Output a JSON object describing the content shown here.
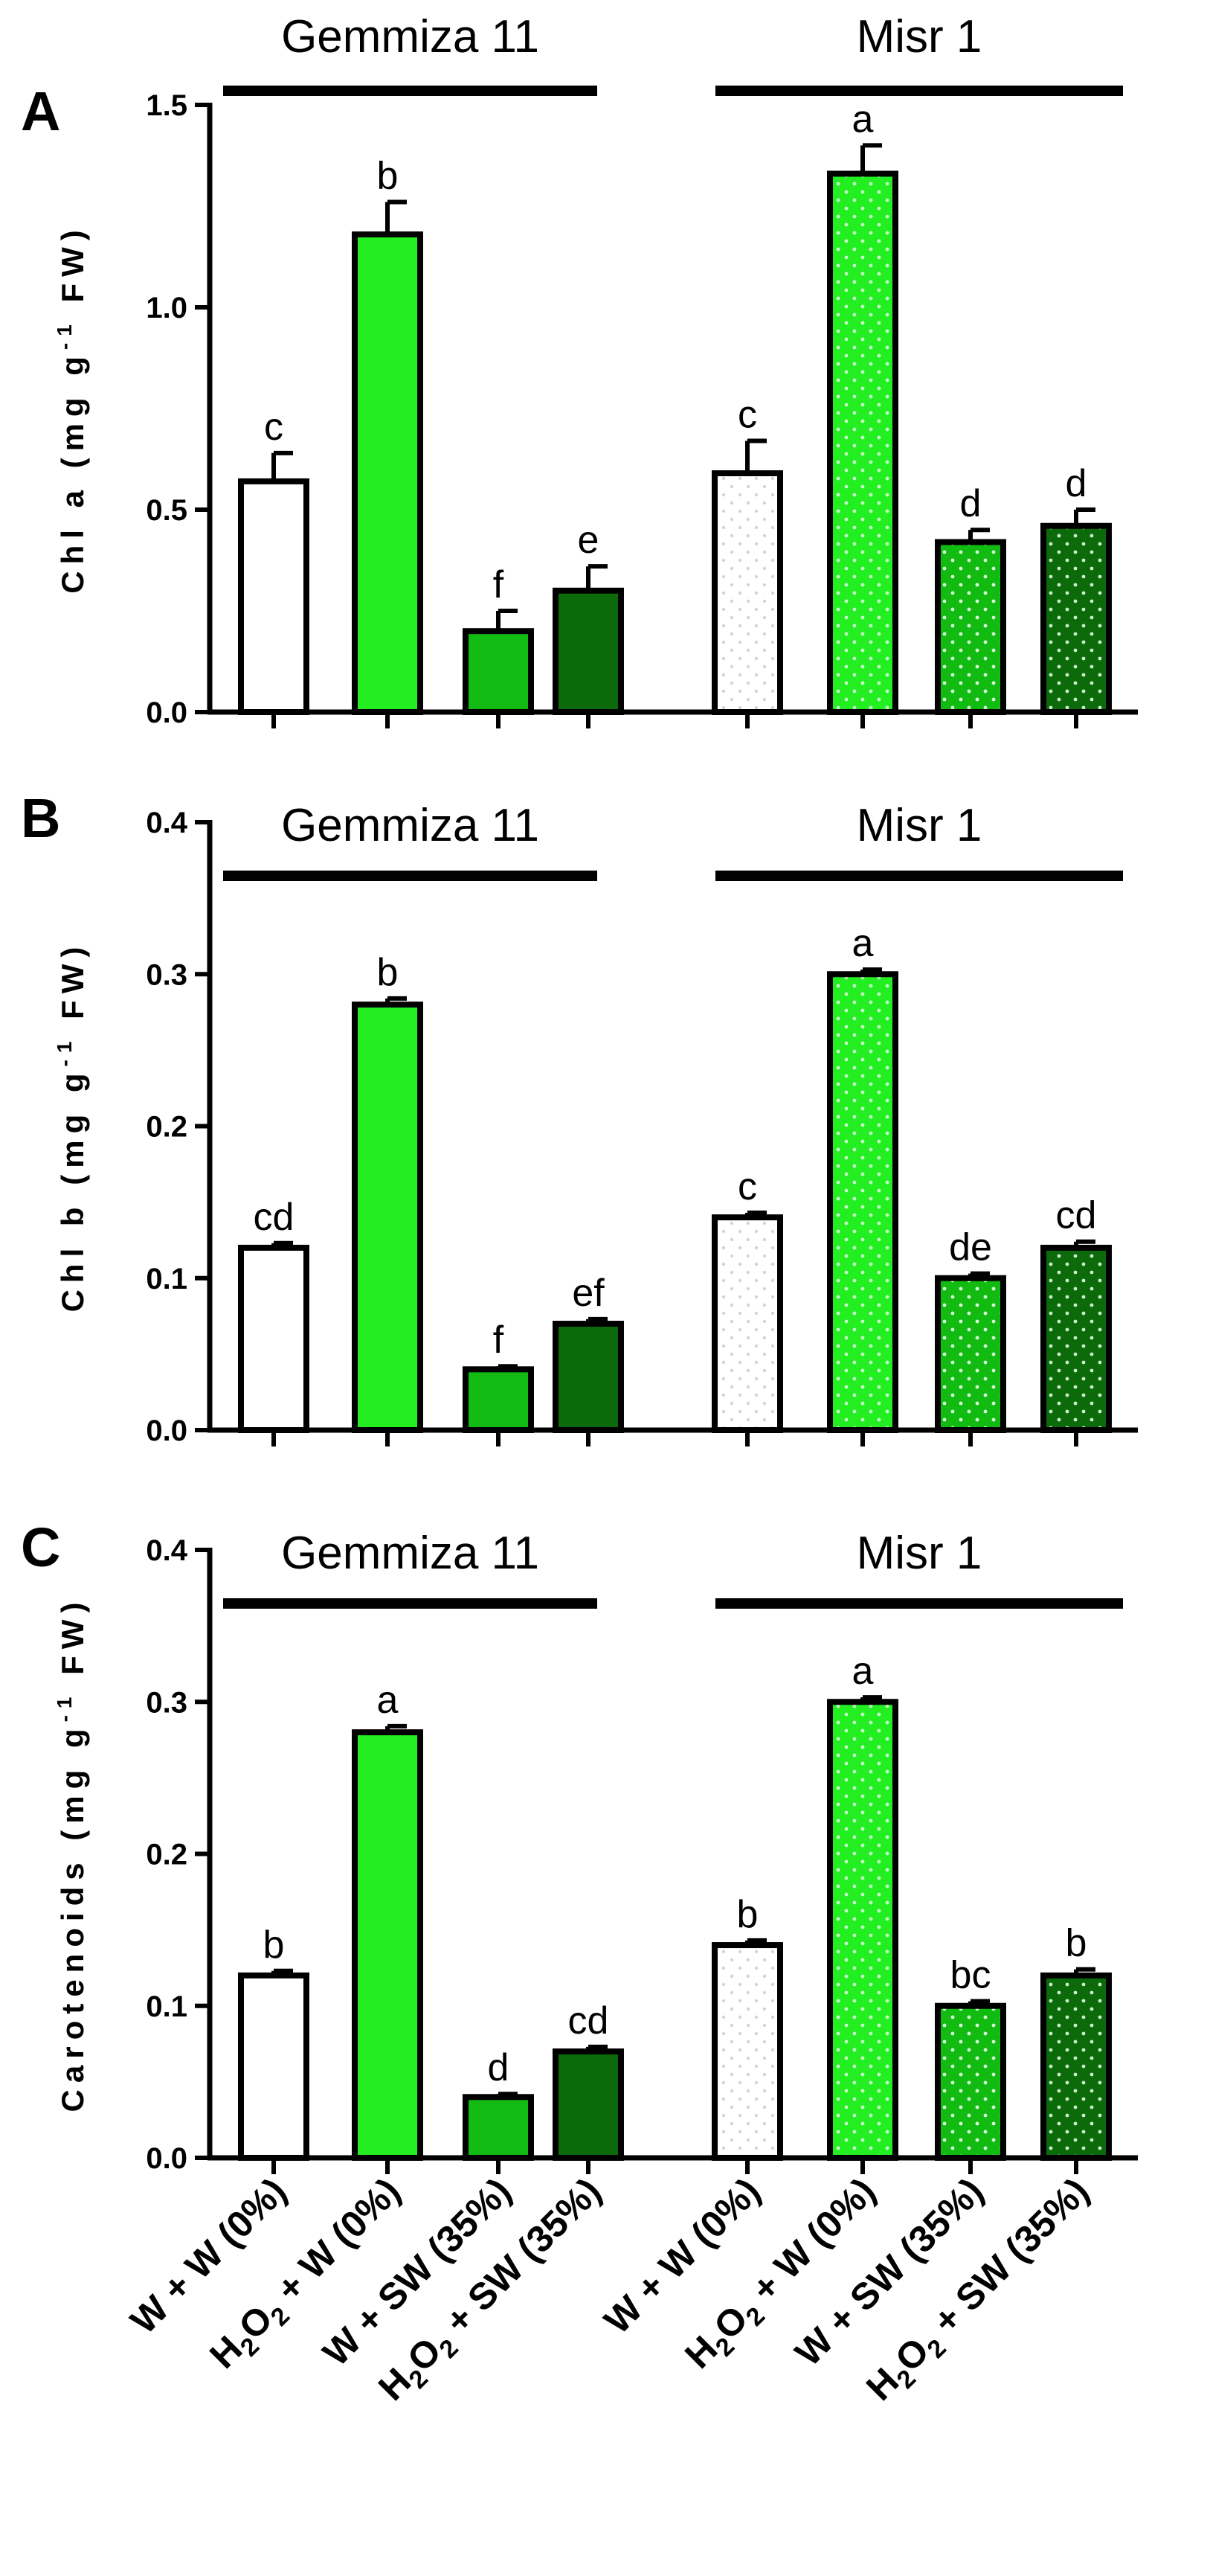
{
  "figure": {
    "groups": [
      "Gemmiza 11",
      "Misr 1"
    ],
    "treatments": [
      {
        "pre": "W + W (0%)",
        "sub": "",
        "post": ""
      },
      {
        "pre": "H",
        "sub": "2",
        "post": "O",
        "sub2": "2",
        "post2": " + W (0%)"
      },
      {
        "pre": "W + SW (35%)",
        "sub": "",
        "post": ""
      },
      {
        "pre": "H",
        "sub": "2",
        "post": "O",
        "sub2": "2",
        "post2": " + SW (35%)"
      }
    ],
    "treatment_labels": [
      "W + W (0%)",
      "H2O2 + W (0%)",
      "W + SW (35%)",
      "H2O2 + SW (35%)"
    ],
    "colors": {
      "ww": "#ffffff",
      "h2o2_w": "#22ee22",
      "w_sw": "#11bb11",
      "h2o2_sw": "#0b6b0b",
      "dot": "#e0e0e0",
      "axis": "#000000"
    }
  },
  "chart_data": [
    {
      "type": "bar",
      "panel": "A",
      "ylabel": "Chl a (mg g-1 FW)",
      "ylabel_parts": {
        "pre": "Chl a (mg g",
        "sup": "-1",
        "post": " FW)"
      },
      "ylim": [
        0,
        1.5
      ],
      "yticks": [
        "0.0",
        "0.5",
        "1.0",
        "1.5"
      ],
      "ytick_values": [
        0,
        0.5,
        1.0,
        1.5
      ],
      "series": [
        {
          "name": "Gemmiza 11",
          "values": [
            0.57,
            1.18,
            0.2,
            0.3
          ],
          "errors": [
            0.07,
            0.08,
            0.05,
            0.06
          ],
          "letters": [
            "c",
            "b",
            "f",
            "e"
          ]
        },
        {
          "name": "Misr 1",
          "values": [
            0.59,
            1.33,
            0.42,
            0.46
          ],
          "errors": [
            0.08,
            0.07,
            0.03,
            0.04
          ],
          "letters": [
            "c",
            "a",
            "d",
            "d"
          ]
        }
      ]
    },
    {
      "type": "bar",
      "panel": "B",
      "ylabel": "Chl b (mg g-1 FW)",
      "ylabel_parts": {
        "pre": "Chl b (mg g",
        "sup": "-1",
        "post": " FW)"
      },
      "ylim": [
        0,
        0.4
      ],
      "yticks": [
        "0.0",
        "0.1",
        "0.2",
        "0.3",
        "0.4"
      ],
      "ytick_values": [
        0,
        0.1,
        0.2,
        0.3,
        0.4
      ],
      "series": [
        {
          "name": "Gemmiza 11",
          "values": [
            0.12,
            0.28,
            0.04,
            0.07
          ],
          "errors": [
            0.003,
            0.004,
            0.002,
            0.003
          ],
          "letters": [
            "cd",
            "b",
            "f",
            "ef"
          ]
        },
        {
          "name": "Misr 1",
          "values": [
            0.14,
            0.3,
            0.1,
            0.12
          ],
          "errors": [
            0.003,
            0.003,
            0.003,
            0.004
          ],
          "letters": [
            "c",
            "a",
            "de",
            "cd"
          ]
        }
      ]
    },
    {
      "type": "bar",
      "panel": "C",
      "ylabel": "Carotenoids (mg g-1 FW)",
      "ylabel_parts": {
        "pre": "Carotenoids (mg g",
        "sup": "-1",
        "post": " FW)"
      },
      "ylim": [
        0,
        0.4
      ],
      "yticks": [
        "0.0",
        "0.1",
        "0.2",
        "0.3",
        "0.4"
      ],
      "ytick_values": [
        0,
        0.1,
        0.2,
        0.3,
        0.4
      ],
      "series": [
        {
          "name": "Gemmiza 11",
          "values": [
            0.12,
            0.28,
            0.04,
            0.07
          ],
          "errors": [
            0.003,
            0.004,
            0.002,
            0.003
          ],
          "letters": [
            "b",
            "a",
            "d",
            "cd"
          ]
        },
        {
          "name": "Misr 1",
          "values": [
            0.14,
            0.3,
            0.1,
            0.12
          ],
          "errors": [
            0.003,
            0.003,
            0.003,
            0.004
          ],
          "letters": [
            "b",
            "a",
            "bc",
            "b"
          ]
        }
      ]
    }
  ]
}
